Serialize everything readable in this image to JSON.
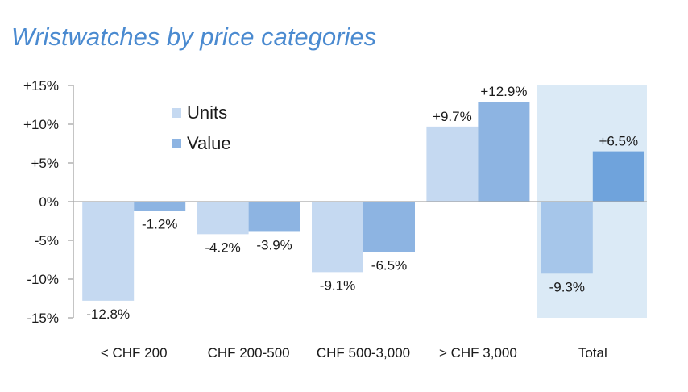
{
  "title": "Wristwatches by price categories",
  "chart_data": {
    "type": "bar",
    "title": "Wristwatches by price categories",
    "categories": [
      "< CHF 200",
      "CHF 200-500",
      "CHF 500-3,000",
      "> CHF 3,000",
      "Total"
    ],
    "series": [
      {
        "name": "Units",
        "values": [
          -12.8,
          -4.2,
          -9.1,
          9.7,
          -9.3
        ],
        "labels": [
          "-12.8%",
          "-4.2%",
          "-9.1%",
          "+9.7%",
          "-9.3%"
        ]
      },
      {
        "name": "Value",
        "values": [
          -1.2,
          -3.9,
          -6.5,
          12.9,
          6.5
        ],
        "labels": [
          "-1.2%",
          "-3.9%",
          "-6.5%",
          "+12.9%",
          "+6.5%"
        ]
      }
    ],
    "yticks": [
      15,
      10,
      5,
      0,
      -5,
      -10,
      -15
    ],
    "ytick_labels": [
      "+15%",
      "+10%",
      "+5%",
      "0%",
      "-5%",
      "-10%",
      "-15%"
    ],
    "ylim": [
      -15,
      15
    ],
    "xlabel": "",
    "ylabel": "",
    "grid": false,
    "legend_position": "top-left",
    "highlighted_category": "Total",
    "colors": {
      "units": "#c5d9f1",
      "value": "#8db4e2",
      "units_total": "#a6c6ea",
      "value_total": "#6fa3dc",
      "highlight_band": "#dbeaf6",
      "title": "#4a8ad0",
      "axis": "#a6a6a6",
      "text": "#1a1a1a"
    }
  }
}
